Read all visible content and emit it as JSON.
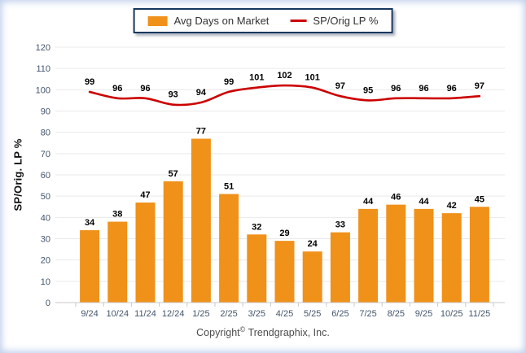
{
  "chart_data": {
    "type": "bar",
    "subtype": "bar+line combo",
    "categories": [
      "9/24",
      "10/24",
      "11/24",
      "12/24",
      "1/25",
      "2/25",
      "3/25",
      "4/25",
      "5/25",
      "6/25",
      "7/25",
      "8/25",
      "9/25",
      "10/25",
      "11/25"
    ],
    "series": [
      {
        "name": "Avg Days on Market",
        "render": "bar",
        "color": "#F0911A",
        "values": [
          34,
          38,
          47,
          57,
          77,
          51,
          32,
          29,
          24,
          33,
          44,
          46,
          44,
          42,
          45
        ]
      },
      {
        "name": "SP/Orig LP %",
        "render": "line",
        "color": "#CC0000",
        "values": [
          99,
          96,
          96,
          93,
          94,
          99,
          101,
          102,
          101,
          97,
          95,
          96,
          96,
          96,
          97
        ]
      }
    ],
    "title": "",
    "xlabel": "",
    "ylabel": "SP/Orig. LP %",
    "ylim": [
      0,
      120
    ],
    "ytick_step": 10,
    "grid": "horizontal",
    "legend_position": "top-center",
    "data_labels": true
  },
  "legend": {
    "bar_label": "Avg Days on Market",
    "line_label": "SP/Orig LP %"
  },
  "footer": {
    "copyright_prefix": "Copyright",
    "copyright_symbol": "©",
    "copyright_suffix": " Trendgraphix, Inc."
  },
  "colors": {
    "bar": "#F0911A",
    "line": "#CC0000",
    "gridline": "#E9E9E9",
    "axis": "#C8C8C8",
    "tick_text": "#44546A",
    "value_label": "#000000",
    "legend_border": "#17375E",
    "edge_vignette": "#B2C4E6"
  }
}
